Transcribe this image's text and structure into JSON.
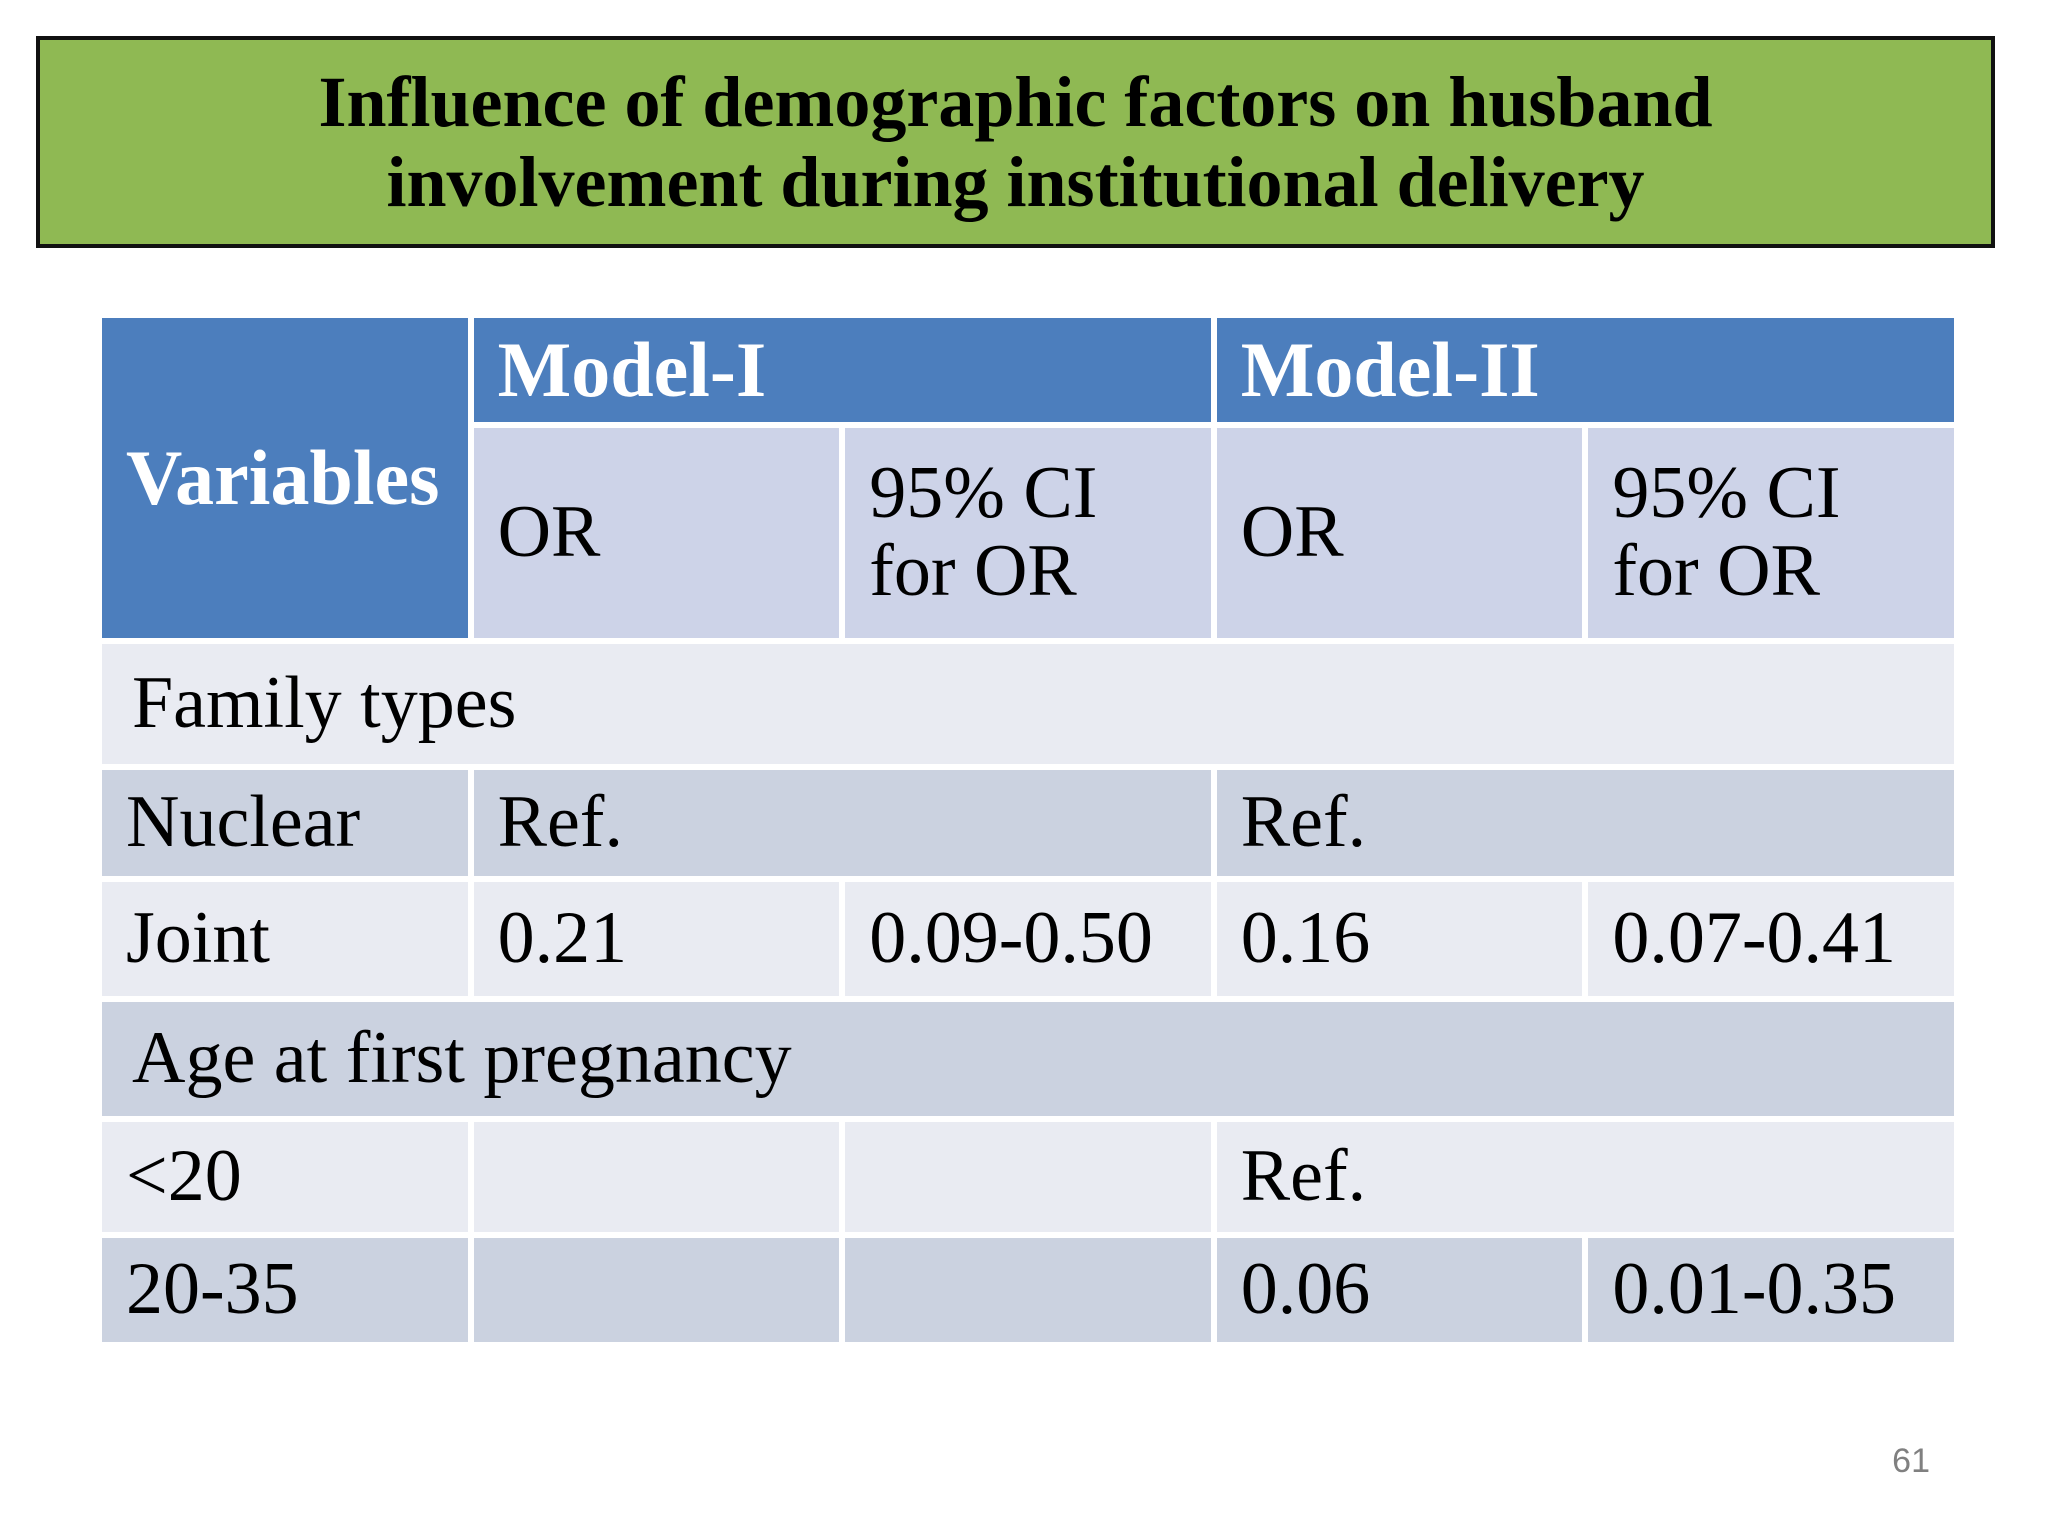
{
  "slide": {
    "title_line1": "Influence of demographic factors on husband",
    "title_line2": "involvement during institutional delivery",
    "page_number": "61"
  },
  "colors": {
    "title_background": "#8FB953",
    "title_border": "#111111",
    "header_blue": "#4C7EBD",
    "subheader_lavender": "#CDD3E8",
    "band_dark": "#CBD2E0",
    "band_light": "#E9EBF2",
    "page_number_gray": "#808080"
  },
  "table": {
    "corner_header": "Variables",
    "model1_header": "Model-I",
    "model2_header": "Model-II",
    "sub_headers": {
      "m1_or": "OR",
      "m1_ci": "95% CI for OR",
      "m2_or": "OR",
      "m2_ci": "95% CI for OR"
    },
    "rows": [
      {
        "kind": "section",
        "label": "Family types"
      },
      {
        "kind": "data",
        "label": "Nuclear",
        "m1_merged": "Ref.",
        "m2_merged": "Ref."
      },
      {
        "kind": "data",
        "label": "Joint",
        "m1_or": "0.21",
        "m1_ci": "0.09-0.50",
        "m2_or": "0.16",
        "m2_ci": "0.07-0.41"
      },
      {
        "kind": "section",
        "label": "Age at first pregnancy"
      },
      {
        "kind": "data",
        "label": "<20",
        "m1_or": "",
        "m1_ci": "",
        "m2_merged": "Ref."
      },
      {
        "kind": "data",
        "label": "20-35",
        "m1_or": "",
        "m1_ci": "",
        "m2_or": "0.06",
        "m2_ci": "0.01-0.35"
      }
    ]
  }
}
